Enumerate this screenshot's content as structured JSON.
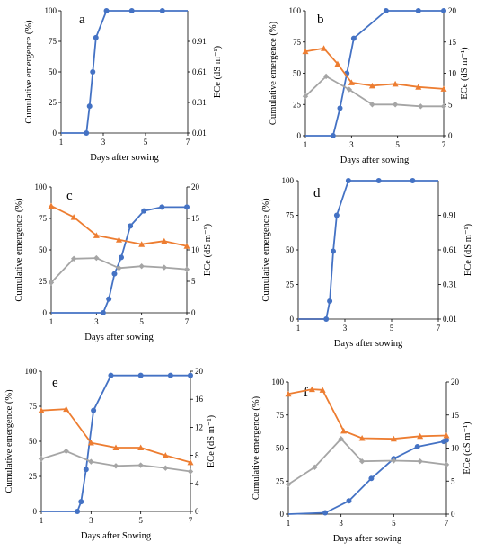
{
  "colors": {
    "emergence": "#4472C4",
    "ece_orange": "#ED7D31",
    "ece_gray": "#A5A5A5"
  },
  "chart_data": [
    {
      "type": "line",
      "panel_label": "a",
      "xlabel": "Days after sowing",
      "ylabel": "Cumulative emergence (%)",
      "y2label": "ECe (dS m⁻¹)",
      "xlim": [
        1,
        7
      ],
      "x_ticks": [
        1,
        3,
        5,
        7
      ],
      "ylim": [
        0,
        100
      ],
      "y_ticks": [
        0,
        25,
        50,
        75,
        100
      ],
      "y2lim": [
        0.01,
        1.21
      ],
      "y2_ticks": [
        "0.01",
        "0.31",
        "0.61",
        "0.91"
      ],
      "series": [
        {
          "color": "#4472C4",
          "marker": "circle",
          "axis": "left",
          "x": [
            1,
            2.2,
            2.35,
            2.5,
            2.65,
            3.15,
            4.35,
            5.8
          ],
          "y": [
            0,
            0,
            22,
            50,
            78,
            100,
            100,
            100
          ]
        },
        {
          "color": "#4472C4",
          "marker": "none",
          "axis": "left",
          "x": [
            5.8,
            7
          ],
          "y": [
            100,
            100
          ]
        }
      ]
    },
    {
      "type": "line",
      "panel_label": "b",
      "xlabel": "Days after sowing",
      "ylabel": "Cumulative emergence (%)",
      "y2label": "ECe (dS m⁻¹)",
      "xlim": [
        1,
        7
      ],
      "x_ticks": [
        1,
        3,
        5,
        7
      ],
      "ylim": [
        0,
        100
      ],
      "y_ticks": [
        0,
        25,
        50,
        75,
        100
      ],
      "y2lim": [
        0,
        20
      ],
      "y2_ticks": [
        "0",
        "5",
        "10",
        "15",
        "20"
      ],
      "series": [
        {
          "color": "#4472C4",
          "marker": "circle",
          "axis": "left",
          "x": [
            1,
            2.2,
            2.5,
            2.8,
            3.1,
            4.5,
            5.9,
            7
          ],
          "y": [
            0,
            0,
            22,
            50,
            78,
            100,
            100,
            100
          ]
        },
        {
          "color": "#ED7D31",
          "marker": "triangle",
          "axis": "right",
          "x": [
            1,
            1.8,
            2.4,
            3.0,
            3.9,
            4.9,
            5.9,
            7
          ],
          "y": [
            13.5,
            14,
            11.5,
            8.5,
            8,
            8.3,
            7.8,
            7.5
          ]
        },
        {
          "color": "#A5A5A5",
          "marker": "diamond",
          "axis": "right",
          "x": [
            1,
            1.9,
            2.9,
            3.9,
            4.9,
            6.0,
            7
          ],
          "y": [
            6.3,
            9.5,
            7.4,
            5,
            5,
            4.7,
            4.7
          ]
        }
      ]
    },
    {
      "type": "line",
      "panel_label": "c",
      "xlabel": "Days after sowing",
      "ylabel": "Cumulative emergence (%)",
      "y2label": "ECe (dS m⁻¹)",
      "xlim": [
        1,
        7
      ],
      "x_ticks": [
        1,
        3,
        5,
        7
      ],
      "ylim": [
        0,
        100
      ],
      "y_ticks": [
        0,
        25,
        50,
        75,
        100
      ],
      "y2lim": [
        0,
        20
      ],
      "y2_ticks": [
        "0",
        "5",
        "10",
        "15",
        "20"
      ],
      "series": [
        {
          "color": "#4472C4",
          "marker": "circle",
          "axis": "left",
          "x": [
            1,
            3.3,
            3.55,
            3.8,
            4.1,
            4.5,
            5.1,
            5.9,
            7
          ],
          "y": [
            0,
            0,
            11,
            31,
            44,
            69,
            81,
            84,
            84
          ]
        },
        {
          "color": "#ED7D31",
          "marker": "triangle",
          "axis": "right",
          "x": [
            1,
            2.0,
            3.0,
            4.0,
            5.0,
            6.0,
            7
          ],
          "y": [
            17,
            15.2,
            12.3,
            11.6,
            10.9,
            11.4,
            10.6
          ]
        },
        {
          "color": "#A5A5A5",
          "marker": "diamond",
          "axis": "right",
          "x": [
            1,
            2.0,
            3.0,
            4.0,
            5.0,
            6.0,
            7
          ],
          "y": [
            4.8,
            8.6,
            8.7,
            7.1,
            7.4,
            7.2,
            6.9
          ]
        }
      ]
    },
    {
      "type": "line",
      "panel_label": "d",
      "xlabel": "Days after sowing",
      "ylabel": "Cumulative emergence (%)",
      "y2label": "ECe (dS m⁻¹)",
      "xlim": [
        1,
        7
      ],
      "x_ticks": [
        1,
        3,
        5,
        7
      ],
      "ylim": [
        0,
        100
      ],
      "y_ticks": [
        0,
        25,
        50,
        75,
        100
      ],
      "y2lim": [
        0.01,
        1.21
      ],
      "y2_ticks": [
        "0.01",
        "0.31",
        "0.61",
        "0.91"
      ],
      "series": [
        {
          "color": "#ED7D31",
          "marker": "none",
          "axis": "left",
          "x": [
            1,
            2.2
          ],
          "y": [
            0,
            0
          ]
        },
        {
          "color": "#4472C4",
          "marker": "circle",
          "axis": "left",
          "x": [
            1,
            2.2,
            2.35,
            2.5,
            2.65,
            3.15,
            4.45,
            5.9
          ],
          "y": [
            0,
            0,
            13,
            49,
            75,
            100,
            100,
            100
          ]
        },
        {
          "color": "#4472C4",
          "marker": "none",
          "axis": "left",
          "x": [
            5.9,
            7
          ],
          "y": [
            100,
            100
          ]
        }
      ]
    },
    {
      "type": "line",
      "panel_label": "e",
      "xlabel": "Days after Sowing",
      "ylabel": "Cumulative emergence (%)",
      "y2label": "ECe (dS m⁻¹)",
      "xlim": [
        1,
        7
      ],
      "x_ticks": [
        1,
        3,
        5,
        7
      ],
      "ylim": [
        0,
        100
      ],
      "y_ticks": [
        0,
        25,
        50,
        75,
        100
      ],
      "y2lim": [
        0,
        20
      ],
      "y2_ticks": [
        "0",
        "4",
        "8",
        "12",
        "16",
        "20"
      ],
      "series": [
        {
          "color": "#4472C4",
          "marker": "circle",
          "axis": "left",
          "x": [
            1,
            2.45,
            2.6,
            2.8,
            3.1,
            3.8,
            5.0,
            6.2,
            7
          ],
          "y": [
            0,
            0,
            7,
            30,
            72,
            97,
            97,
            97,
            97
          ]
        },
        {
          "color": "#ED7D31",
          "marker": "triangle",
          "axis": "right",
          "x": [
            1,
            2.0,
            3.0,
            4.0,
            5.0,
            6.0,
            7
          ],
          "y": [
            14.4,
            14.6,
            9.8,
            9.1,
            9.1,
            8,
            7
          ]
        },
        {
          "color": "#A5A5A5",
          "marker": "diamond",
          "axis": "right",
          "x": [
            1,
            2.0,
            3.0,
            4.0,
            5.0,
            6.0,
            7
          ],
          "y": [
            7.5,
            8.6,
            7.1,
            6.5,
            6.6,
            6.2,
            5.7
          ]
        }
      ]
    },
    {
      "type": "line",
      "panel_label": "f",
      "xlabel": "Days after sowing",
      "ylabel": "Cumulative emergence (%)",
      "y2label": "ECe (dS m⁻¹)",
      "xlim": [
        1,
        7
      ],
      "x_ticks": [
        1,
        3,
        5,
        7
      ],
      "ylim": [
        0,
        100
      ],
      "y_ticks": [
        0,
        25,
        50,
        75,
        100
      ],
      "y2lim": [
        0,
        20
      ],
      "y2_ticks": [
        "0",
        "5",
        "10",
        "15",
        "20"
      ],
      "series": [
        {
          "color": "#4472C4",
          "marker": "circle",
          "axis": "left",
          "x": [
            1,
            2.4,
            3.3,
            4.15,
            5.0,
            5.9,
            6.9,
            7
          ],
          "y": [
            0,
            1,
            10,
            27,
            42,
            51,
            55,
            56
          ]
        },
        {
          "color": "#ED7D31",
          "marker": "triangle",
          "axis": "right",
          "x": [
            1,
            1.9,
            2.3,
            3.1,
            3.8,
            5.0,
            6.0,
            7
          ],
          "y": [
            18.2,
            18.9,
            18.8,
            12.6,
            11.5,
            11.4,
            11.8,
            11.9
          ]
        },
        {
          "color": "#A5A5A5",
          "marker": "diamond",
          "axis": "right",
          "x": [
            1,
            2.0,
            3.0,
            3.8,
            5.0,
            6.0,
            7
          ],
          "y": [
            4.5,
            7.1,
            11.4,
            8,
            8.1,
            8,
            7.5
          ]
        }
      ]
    }
  ]
}
